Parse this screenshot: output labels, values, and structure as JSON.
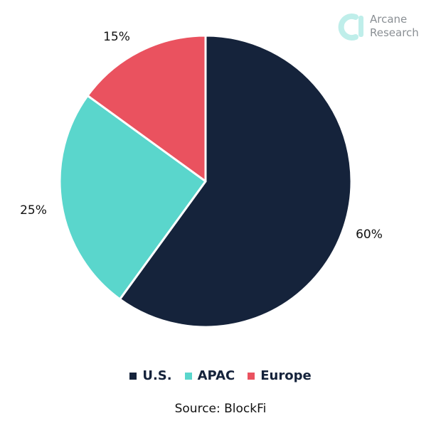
{
  "brand": {
    "line1": "Arcane",
    "line2": "Research",
    "accent_color": "#5ad6cc"
  },
  "source": "Source: BlockFi",
  "chart_data": {
    "type": "pie",
    "title": "",
    "categories": [
      "U.S.",
      "APAC",
      "Europe"
    ],
    "values": [
      60,
      25,
      15
    ],
    "labels": [
      "60%",
      "25%",
      "15%"
    ],
    "colors": [
      "#15233b",
      "#5ad6cc",
      "#ea525f"
    ],
    "start_angle_deg": 0,
    "direction": "clockwise",
    "legend": "bottom"
  }
}
